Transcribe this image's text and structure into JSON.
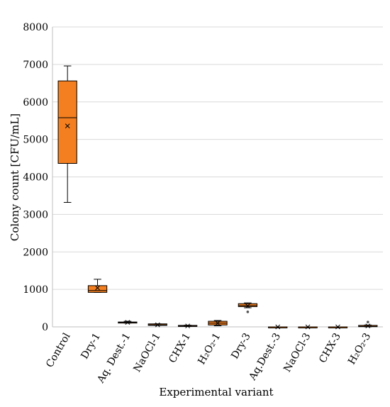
{
  "chart_data": {
    "type": "box",
    "title": "",
    "xlabel": "Experimental variant",
    "ylabel": "Colony count [CFU/mL]",
    "ylim": [
      0,
      8000
    ],
    "yticks": [
      0,
      1000,
      2000,
      3000,
      4000,
      5000,
      6000,
      7000,
      8000
    ],
    "grid": "horizontal",
    "colors": {
      "box_fill": "#f47f20",
      "box_stroke": "#000000",
      "grid": "#d9d9d9",
      "axis": "#bfbfbf"
    },
    "categories": [
      "Control",
      "Dry-1",
      "Aq. Dest.-1",
      "NaOCl-1",
      "CHX-1",
      "H₂O₂-1",
      "Dry-3",
      "Aq.Dest.-3",
      "NaOCl-3",
      "CHX-3",
      "H₂O₂-3"
    ],
    "boxes": [
      {
        "min": 3320,
        "q1": 4360,
        "median": 5580,
        "q3": 6560,
        "max": 6960,
        "mean": 5360,
        "outliers": []
      },
      {
        "min": 920,
        "q1": 920,
        "median": 970,
        "q3": 1100,
        "max": 1270,
        "mean": 1040,
        "outliers": []
      },
      {
        "min": 100,
        "q1": 110,
        "median": 120,
        "q3": 130,
        "max": 150,
        "mean": 120,
        "outliers": []
      },
      {
        "min": 40,
        "q1": 40,
        "median": 55,
        "q3": 80,
        "max": 80,
        "mean": 55,
        "outliers": []
      },
      {
        "min": 10,
        "q1": 12,
        "median": 20,
        "q3": 40,
        "max": 45,
        "mean": 25,
        "outliers": []
      },
      {
        "min": 30,
        "q1": 50,
        "median": 100,
        "q3": 150,
        "max": 170,
        "mean": 100,
        "outliers": []
      },
      {
        "min": 510,
        "q1": 540,
        "median": 570,
        "q3": 620,
        "max": 640,
        "mean": 560,
        "outliers": [
          400
        ]
      },
      {
        "min": 0,
        "q1": 0,
        "median": 0,
        "q3": 0,
        "max": 0,
        "mean": 0,
        "outliers": []
      },
      {
        "min": 0,
        "q1": 0,
        "median": 0,
        "q3": 0,
        "max": 0,
        "mean": 0,
        "outliers": []
      },
      {
        "min": 0,
        "q1": 0,
        "median": 0,
        "q3": 0,
        "max": 0,
        "mean": 0,
        "outliers": []
      },
      {
        "min": 0,
        "q1": 5,
        "median": 15,
        "q3": 40,
        "max": 50,
        "mean": 25,
        "outliers": [
          130
        ]
      }
    ]
  }
}
